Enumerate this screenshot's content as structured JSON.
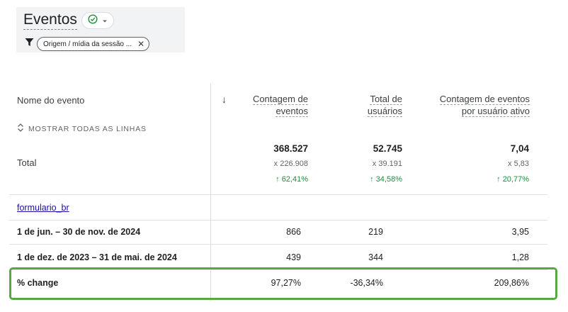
{
  "header": {
    "title": "Eventos",
    "filter_chip": "Origem / mídia da sessão ..."
  },
  "table": {
    "dimension_header": "Nome do evento",
    "show_all_rows": "MOSTRAR TODAS AS LINHAS",
    "columns": [
      {
        "line1": "Contagem de",
        "line2": "eventos"
      },
      {
        "line1": "Total de",
        "line2": "usuários"
      },
      {
        "line1": "Contagem de eventos",
        "line2": "por usuário ativo"
      }
    ],
    "total": {
      "label": "Total",
      "values": [
        "368.527",
        "52.745",
        "7,04"
      ],
      "compare": [
        "x 226.908",
        "x 39.191",
        "x 5,83"
      ],
      "change": [
        "62,41%",
        "34,58%",
        "20,77%"
      ]
    },
    "group_label": "formulario_br",
    "rows": [
      {
        "label": "1 de jun. – 30 de nov. de 2024",
        "values": [
          "866",
          "219",
          "3,95"
        ]
      },
      {
        "label": "1 de dez. de 2023 – 31 de mai. de 2024",
        "values": [
          "439",
          "344",
          "1,28"
        ]
      },
      {
        "label": "% change",
        "values": [
          "97,27%",
          "-36,34%",
          "209,86%"
        ]
      }
    ]
  },
  "colors": {
    "positive": "#1e8e3e",
    "highlight": "#5aa843",
    "link": "#1a0dab"
  }
}
